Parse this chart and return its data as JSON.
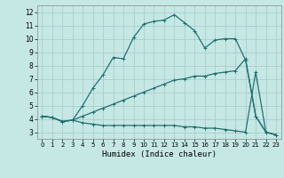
{
  "xlabel": "Humidex (Indice chaleur)",
  "bg_color": "#c5e8e5",
  "grid_color": "#aacccc",
  "line_color": "#217070",
  "xlim": [
    -0.5,
    23.5
  ],
  "ylim": [
    2.5,
    12.5
  ],
  "xticks": [
    0,
    1,
    2,
    3,
    4,
    5,
    6,
    7,
    8,
    9,
    10,
    11,
    12,
    13,
    14,
    15,
    16,
    17,
    18,
    19,
    20,
    21,
    22,
    23
  ],
  "yticks": [
    3,
    4,
    5,
    6,
    7,
    8,
    9,
    10,
    11,
    12
  ],
  "curve1_x": [
    0,
    1,
    2,
    3,
    4,
    5,
    6,
    7,
    8,
    9,
    10,
    11,
    12,
    13,
    14,
    15,
    16,
    17,
    18,
    19,
    20,
    21,
    22,
    23
  ],
  "curve1_y": [
    4.2,
    4.1,
    3.8,
    3.9,
    5.0,
    6.3,
    7.3,
    8.6,
    8.5,
    10.1,
    11.1,
    11.3,
    11.4,
    11.8,
    11.2,
    10.6,
    9.3,
    9.9,
    10.0,
    10.0,
    8.4,
    4.2,
    3.0,
    2.8
  ],
  "curve2_x": [
    0,
    1,
    2,
    3,
    4,
    5,
    6,
    7,
    8,
    9,
    10,
    11,
    12,
    13,
    14,
    15,
    16,
    17,
    18,
    19,
    20,
    21,
    22,
    23
  ],
  "curve2_y": [
    4.2,
    4.1,
    3.8,
    3.9,
    4.2,
    4.5,
    4.8,
    5.1,
    5.4,
    5.7,
    6.0,
    6.3,
    6.6,
    6.9,
    7.0,
    7.2,
    7.2,
    7.4,
    7.5,
    7.6,
    8.5,
    4.2,
    3.0,
    2.8
  ],
  "curve3_x": [
    0,
    1,
    2,
    3,
    4,
    5,
    6,
    7,
    8,
    9,
    10,
    11,
    12,
    13,
    14,
    15,
    16,
    17,
    18,
    19,
    20,
    21,
    22,
    23
  ],
  "curve3_y": [
    4.2,
    4.1,
    3.8,
    3.9,
    3.7,
    3.6,
    3.5,
    3.5,
    3.5,
    3.5,
    3.5,
    3.5,
    3.5,
    3.5,
    3.4,
    3.4,
    3.3,
    3.3,
    3.2,
    3.1,
    3.0,
    7.5,
    3.0,
    2.8
  ]
}
